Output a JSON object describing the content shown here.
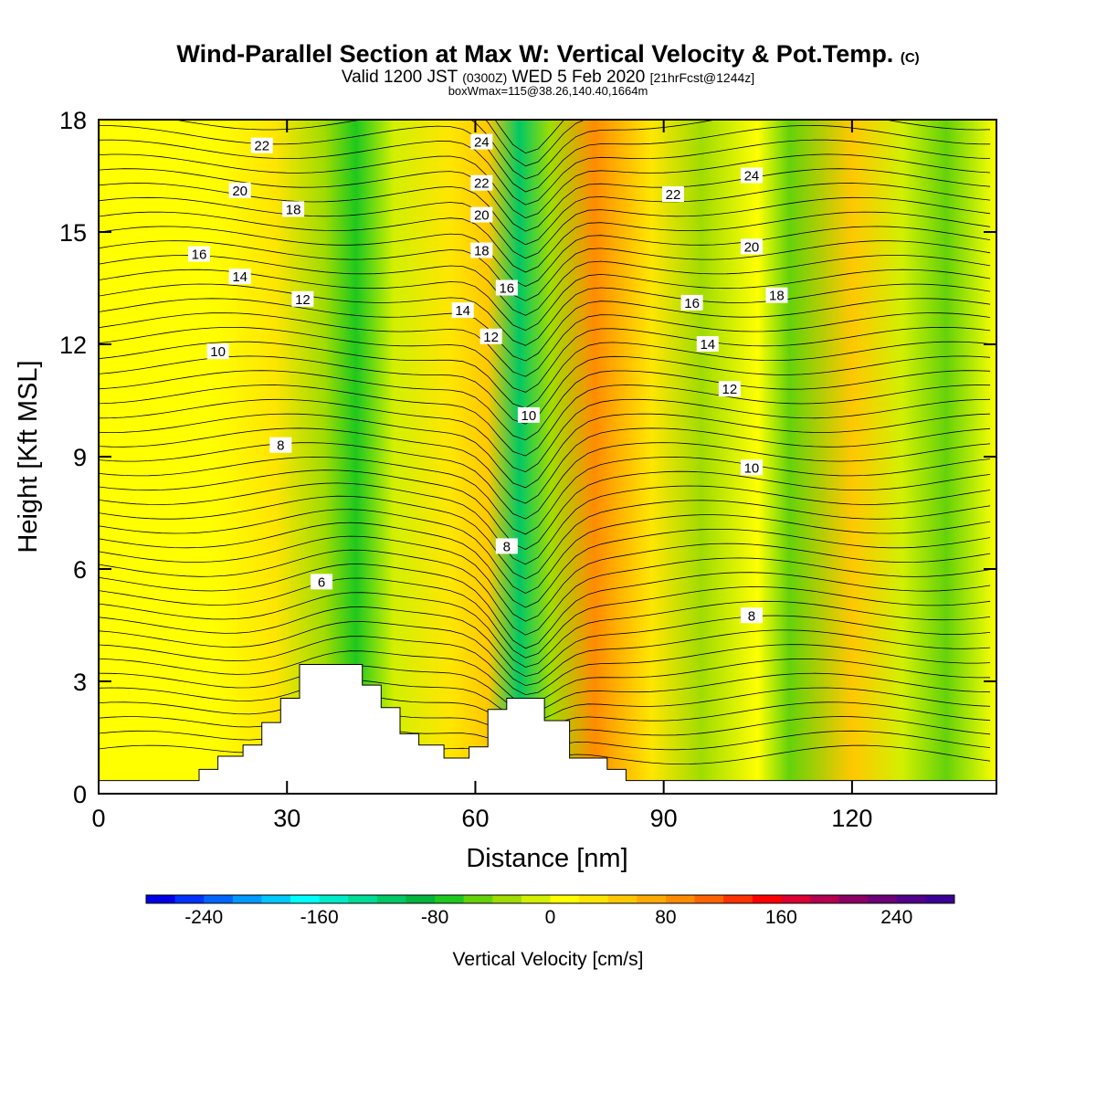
{
  "header": {
    "title_main": "Wind-Parallel Section at Max W: Vertical Velocity & Pot.Temp.",
    "title_mark": "(C)",
    "valid_prefix": "Valid 1200 JST",
    "valid_utc": "(0300Z)",
    "valid_date": "WED 5 Feb 2020",
    "valid_fcst": "[21hrFcst@1244z]",
    "box_info": "boxWmax=115@38.26,140.40,1664m"
  },
  "colorbar": {
    "title": "Vertical Velocity [cm/s]",
    "tick_labels": [
      "-240",
      "-160",
      "-80",
      "0",
      "80",
      "160",
      "240"
    ],
    "tick_values": [
      -240,
      -160,
      -80,
      0,
      80,
      160,
      240
    ],
    "min": -280,
    "max": 280,
    "step": 20,
    "colors": [
      "#0000e6",
      "#0033ff",
      "#0066ff",
      "#0099ff",
      "#00c8ff",
      "#00ffff",
      "#00ecc8",
      "#00dc96",
      "#00c864",
      "#00b43c",
      "#1ec81e",
      "#64d20a",
      "#a0dc00",
      "#d2f000",
      "#ffff00",
      "#ffe600",
      "#ffc800",
      "#ffaa00",
      "#ff8c00",
      "#ff6400",
      "#ff3200",
      "#ff0000",
      "#dc0032",
      "#b40050",
      "#8c0064",
      "#6e0078",
      "#50008c",
      "#3c0096"
    ]
  },
  "chart_data": {
    "type": "heatmap",
    "description_type": "cross-section contour",
    "xlabel": "Distance [nm]",
    "ylabel": "Height [Kft MSL]",
    "xlim": [
      0,
      143
    ],
    "ylim": [
      0,
      18
    ],
    "x_ticks": [
      0,
      30,
      60,
      90,
      120
    ],
    "x_tick_labels": [
      "0",
      "30",
      "60",
      "90",
      "120"
    ],
    "y_ticks": [
      0,
      3,
      6,
      9,
      12,
      15,
      18
    ],
    "y_tick_labels": [
      "0",
      "3",
      "6",
      "9",
      "12",
      "15",
      "18"
    ],
    "vertical_velocity_bands": [
      {
        "x": 0,
        "w": 0
      },
      {
        "x": 18,
        "w": 10
      },
      {
        "x": 28,
        "w": 30
      },
      {
        "x": 36,
        "w": -30
      },
      {
        "x": 41,
        "w": -70
      },
      {
        "x": 47,
        "w": -10
      },
      {
        "x": 56,
        "w": 20
      },
      {
        "x": 62,
        "w": 50
      },
      {
        "x": 67,
        "w": -110
      },
      {
        "x": 72,
        "w": -40
      },
      {
        "x": 79,
        "w": 90
      },
      {
        "x": 88,
        "w": 20
      },
      {
        "x": 96,
        "w": -40
      },
      {
        "x": 105,
        "w": 10
      },
      {
        "x": 110,
        "w": -50
      },
      {
        "x": 120,
        "w": 50
      },
      {
        "x": 128,
        "w": -20
      },
      {
        "x": 135,
        "w": -60
      },
      {
        "x": 143,
        "w": 0
      }
    ],
    "terrain_profile_kft": [
      [
        0,
        0.35
      ],
      [
        16,
        0.35
      ],
      [
        16,
        0.65
      ],
      [
        19,
        0.65
      ],
      [
        19,
        1.0
      ],
      [
        23,
        1.0
      ],
      [
        23,
        1.3
      ],
      [
        26,
        1.3
      ],
      [
        26,
        1.9
      ],
      [
        29,
        1.9
      ],
      [
        29,
        2.55
      ],
      [
        32,
        2.55
      ],
      [
        32,
        3.45
      ],
      [
        42,
        3.45
      ],
      [
        42,
        2.9
      ],
      [
        45,
        2.9
      ],
      [
        45,
        2.3
      ],
      [
        48,
        2.3
      ],
      [
        48,
        1.6
      ],
      [
        51,
        1.6
      ],
      [
        51,
        1.3
      ],
      [
        55,
        1.3
      ],
      [
        55,
        0.95
      ],
      [
        59,
        0.95
      ],
      [
        59,
        1.25
      ],
      [
        62,
        1.25
      ],
      [
        62,
        2.25
      ],
      [
        65,
        2.25
      ],
      [
        65,
        2.55
      ],
      [
        71,
        2.55
      ],
      [
        71,
        1.95
      ],
      [
        75,
        1.95
      ],
      [
        75,
        0.95
      ],
      [
        81,
        0.95
      ],
      [
        81,
        0.65
      ],
      [
        84,
        0.65
      ],
      [
        84,
        0.35
      ],
      [
        143,
        0.35
      ]
    ],
    "potential_temperature_labels": [
      {
        "value": "22",
        "x": 26,
        "y": 17.3
      },
      {
        "value": "20",
        "x": 22.5,
        "y": 16.1
      },
      {
        "value": "18",
        "x": 31,
        "y": 15.6
      },
      {
        "value": "16",
        "x": 16,
        "y": 14.4
      },
      {
        "value": "14",
        "x": 22.5,
        "y": 13.8
      },
      {
        "value": "12",
        "x": 32.5,
        "y": 13.2
      },
      {
        "value": "10",
        "x": 19,
        "y": 11.8
      },
      {
        "value": "8",
        "x": 29,
        "y": 9.3
      },
      {
        "value": "6",
        "x": 35.5,
        "y": 5.65
      },
      {
        "value": "24",
        "x": 61,
        "y": 17.4
      },
      {
        "value": "22",
        "x": 61,
        "y": 16.3
      },
      {
        "value": "20",
        "x": 61,
        "y": 15.45
      },
      {
        "value": "18",
        "x": 61,
        "y": 14.5
      },
      {
        "value": "16",
        "x": 65,
        "y": 13.5
      },
      {
        "value": "14",
        "x": 58,
        "y": 12.9
      },
      {
        "value": "12",
        "x": 62.5,
        "y": 12.2
      },
      {
        "value": "10",
        "x": 68.5,
        "y": 10.1
      },
      {
        "value": "8",
        "x": 65,
        "y": 6.6
      },
      {
        "value": "22",
        "x": 91.5,
        "y": 16.0
      },
      {
        "value": "24",
        "x": 104,
        "y": 16.5
      },
      {
        "value": "20",
        "x": 104,
        "y": 14.6
      },
      {
        "value": "16",
        "x": 94.5,
        "y": 13.1
      },
      {
        "value": "18",
        "x": 108,
        "y": 13.3
      },
      {
        "value": "14",
        "x": 97,
        "y": 12.0
      },
      {
        "value": "12",
        "x": 100.5,
        "y": 10.8
      },
      {
        "value": "10",
        "x": 104,
        "y": 8.7
      },
      {
        "value": "8",
        "x": 104,
        "y": 4.75
      }
    ]
  }
}
